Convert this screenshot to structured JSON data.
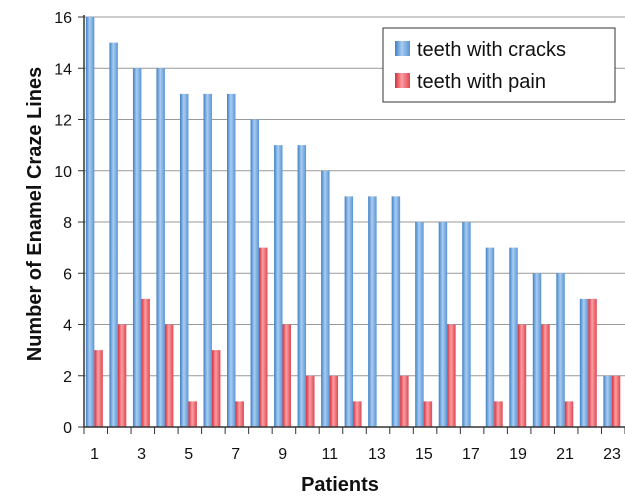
{
  "chart_data": {
    "type": "bar",
    "xlabel": "Patients",
    "ylabel": "Number of Enamel Craze Lines",
    "ylim": [
      0,
      16
    ],
    "y_ticks": [
      0,
      2,
      4,
      6,
      8,
      10,
      12,
      14,
      16
    ],
    "categories": [
      1,
      2,
      3,
      4,
      5,
      6,
      7,
      8,
      9,
      10,
      11,
      12,
      13,
      14,
      15,
      16,
      17,
      18,
      19,
      20,
      21,
      22,
      23
    ],
    "x_tick_labels": [
      "1",
      "3",
      "5",
      "7",
      "9",
      "11",
      "13",
      "15",
      "17",
      "19",
      "21",
      "23"
    ],
    "series": [
      {
        "name": "teeth with cracks",
        "color": "#5b9bd5",
        "values": [
          16,
          15,
          14,
          14,
          13,
          13,
          13,
          12,
          11,
          11,
          10,
          9,
          9,
          9,
          8,
          8,
          8,
          7,
          7,
          6,
          6,
          5,
          2
        ]
      },
      {
        "name": "teeth with pain",
        "color": "#e8474f",
        "values": [
          3,
          4,
          5,
          4,
          1,
          3,
          1,
          7,
          4,
          2,
          2,
          1,
          0,
          2,
          1,
          4,
          0,
          1,
          4,
          4,
          1,
          5,
          2
        ]
      }
    ],
    "grid": true,
    "legend_position": "top-right"
  }
}
